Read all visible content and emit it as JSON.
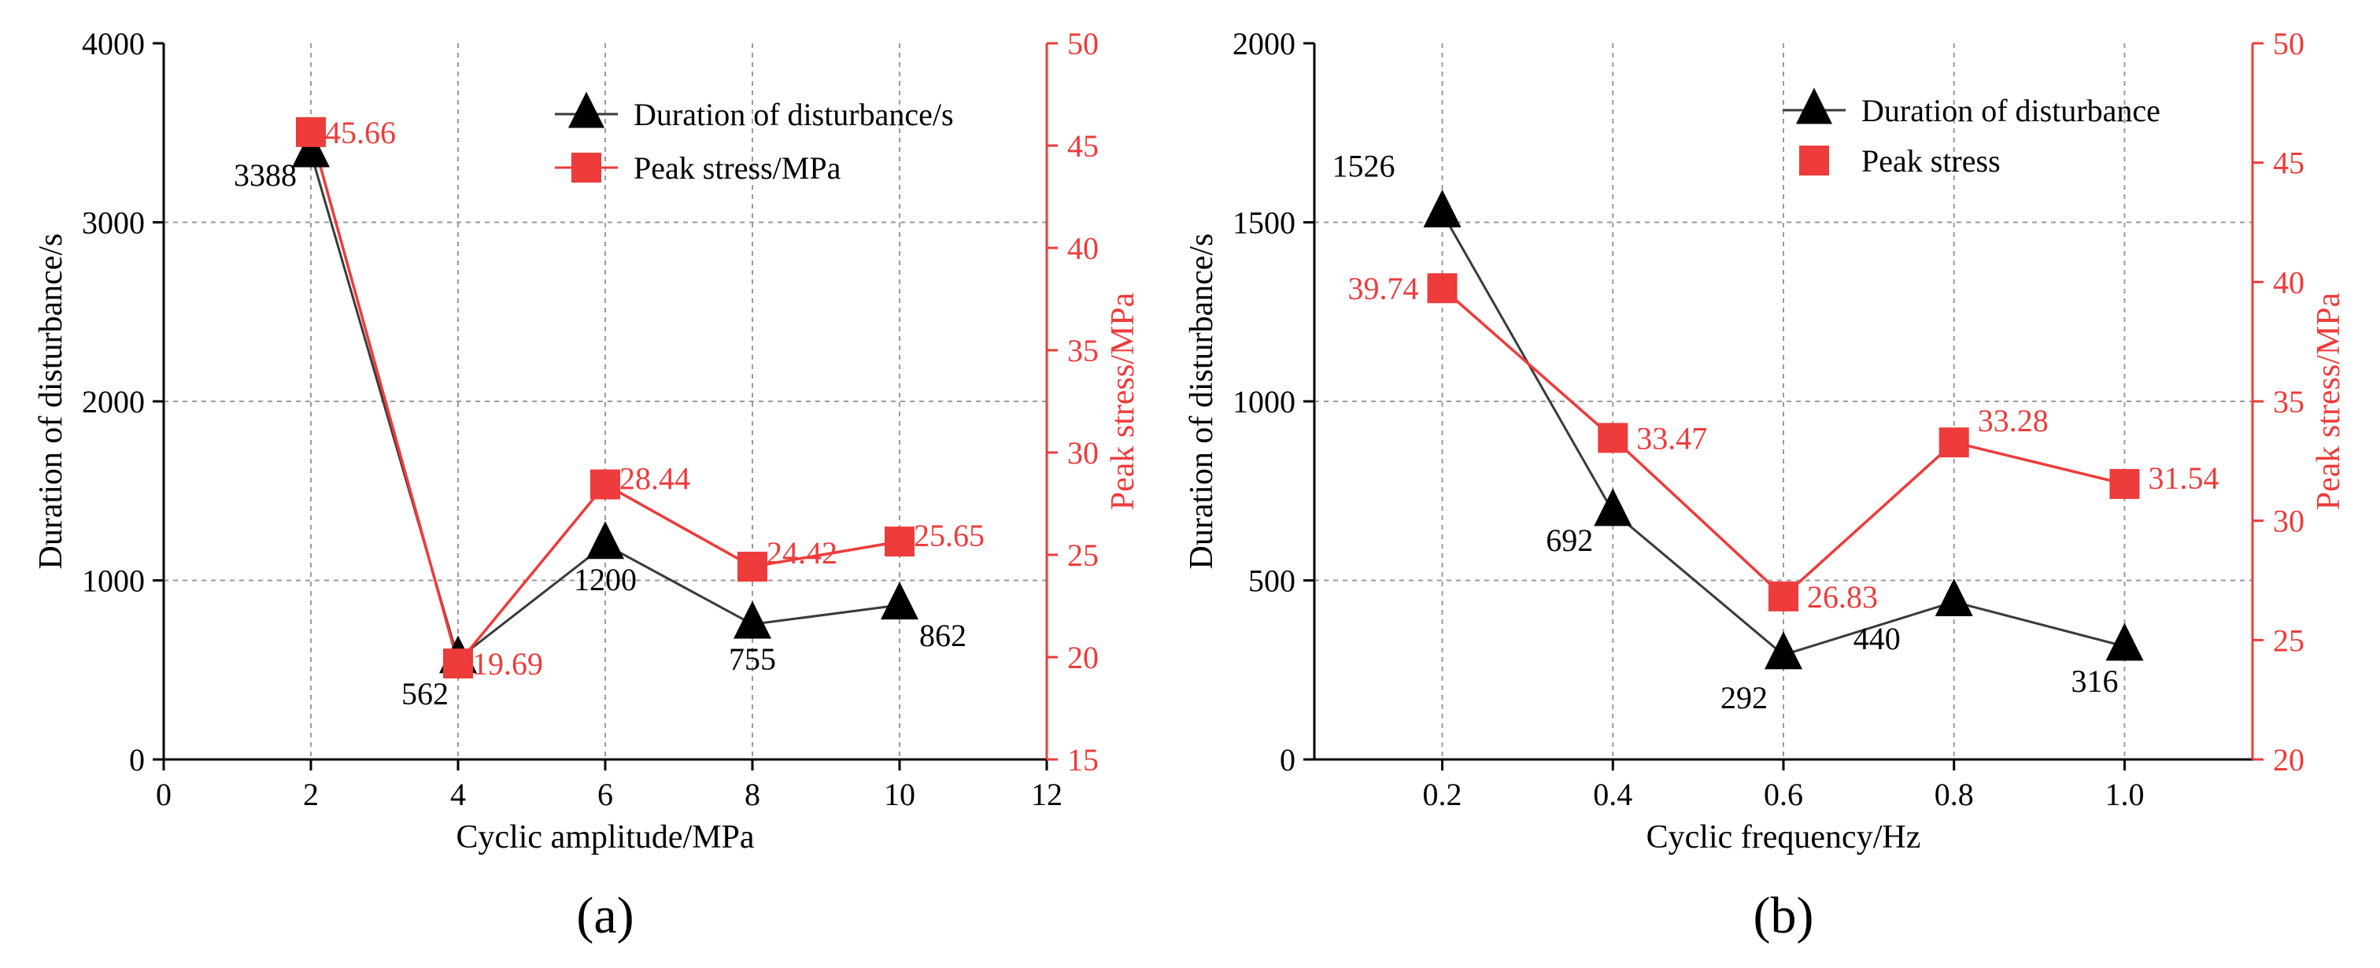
{
  "colors": {
    "duration": "#000000",
    "peak": "#ee3b3b",
    "grid": "#9a9a9a",
    "axis": "#000000"
  },
  "chart_data": [
    {
      "panel_label": "(a)",
      "type": "line",
      "x": [
        2,
        4,
        6,
        8,
        10
      ],
      "xlabel": "Cyclic amplitude/MPa",
      "ylabel": "Duration of disturbance/s",
      "y2label": "Peak stress/MPa",
      "xlim": [
        0,
        12
      ],
      "ylim": [
        0,
        4000
      ],
      "y2lim": [
        15,
        50
      ],
      "xticks": [
        "0",
        "2",
        "4",
        "6",
        "8",
        "10",
        "12"
      ],
      "yticks": [
        "0",
        "1000",
        "2000",
        "3000",
        "4000"
      ],
      "y2ticks": [
        "15",
        "20",
        "25",
        "30",
        "35",
        "40",
        "45",
        "50"
      ],
      "grid": true,
      "legend_position": "top-right",
      "series": [
        {
          "name": "Duration of disturbance/s",
          "axis": "left",
          "marker": "triangle",
          "values": [
            3388,
            562,
            1200,
            755,
            862
          ],
          "labels": [
            "3388",
            "562",
            "1200",
            "755",
            "862"
          ]
        },
        {
          "name": "Peak stress/MPa",
          "axis": "right",
          "marker": "square",
          "values": [
            45.66,
            19.69,
            28.44,
            24.42,
            25.65
          ],
          "labels": [
            "45.66",
            "19.69",
            "28.44",
            "24.42",
            "25.65"
          ]
        }
      ]
    },
    {
      "panel_label": "(b)",
      "type": "line",
      "x": [
        0.2,
        0.4,
        0.6,
        0.8,
        1.0
      ],
      "xlabel": "Cyclic frequency/Hz",
      "ylabel": "Duration of disturbance/s",
      "y2label": "Peak stress/MPa",
      "xlim": [
        0.05,
        1.15
      ],
      "ylim": [
        0,
        2000
      ],
      "y2lim": [
        20,
        50
      ],
      "xticks": [
        "0.2",
        "0.4",
        "0.6",
        "0.8",
        "1.0"
      ],
      "yticks": [
        "0",
        "500",
        "1000",
        "1500",
        "2000"
      ],
      "y2ticks": [
        "20",
        "25",
        "30",
        "35",
        "40",
        "45",
        "50"
      ],
      "grid": true,
      "legend_position": "top-right",
      "series": [
        {
          "name": "Duration of disturbance",
          "axis": "left",
          "marker": "triangle",
          "values": [
            1526,
            692,
            292,
            440,
            316
          ],
          "labels": [
            "1526",
            "692",
            "292",
            "440",
            "316"
          ]
        },
        {
          "name": "Peak stress",
          "axis": "right",
          "marker": "square",
          "values": [
            39.74,
            33.47,
            26.83,
            33.28,
            31.54
          ],
          "labels": [
            "39.74",
            "33.47",
            "26.83",
            "33.28",
            "31.54"
          ]
        }
      ]
    }
  ]
}
